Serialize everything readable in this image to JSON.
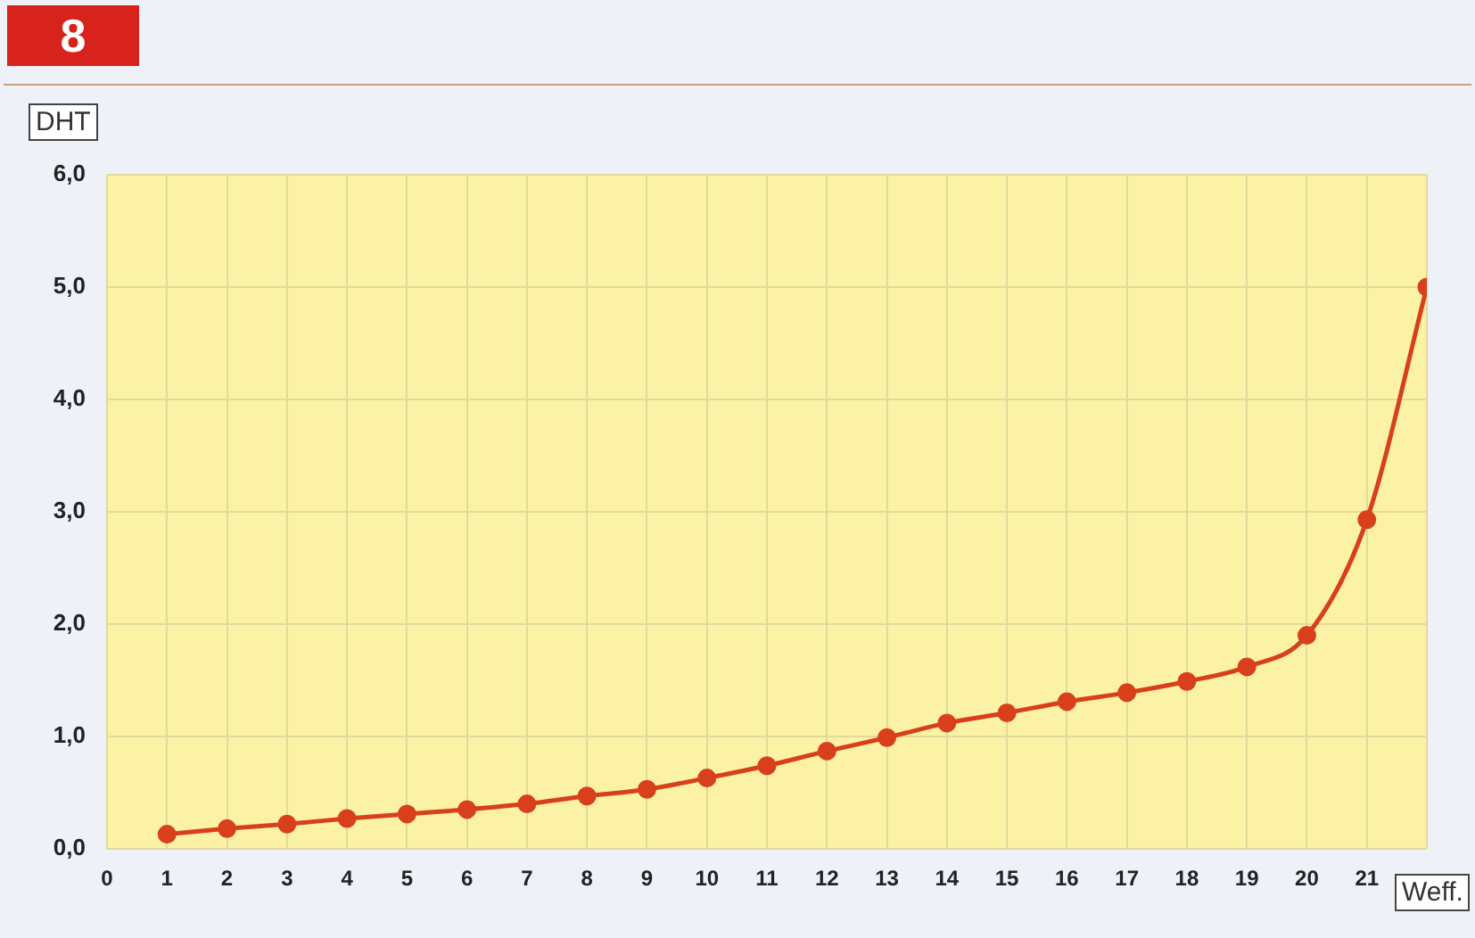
{
  "chart_data": {
    "type": "line",
    "title": "8",
    "xlabel": "Weff.",
    "ylabel": "DHT",
    "x": [
      1,
      2,
      3,
      4,
      5,
      6,
      7,
      8,
      9,
      10,
      11,
      12,
      13,
      14,
      15,
      16,
      17,
      18,
      19,
      20,
      21,
      22
    ],
    "series": [
      {
        "color": "#d8401c",
        "values": [
          0.13,
          0.18,
          0.22,
          0.27,
          0.31,
          0.35,
          0.4,
          0.47,
          0.53,
          0.63,
          0.74,
          0.87,
          0.99,
          1.12,
          1.21,
          1.31,
          1.39,
          1.49,
          1.62,
          1.9,
          2.93,
          5.0
        ]
      }
    ],
    "xlim": [
      0,
      22
    ],
    "xticks": [
      0,
      1,
      2,
      3,
      4,
      5,
      6,
      7,
      8,
      9,
      10,
      11,
      12,
      13,
      14,
      15,
      16,
      17,
      18,
      19,
      20,
      21,
      {
        "value": 22,
        "label": null
      }
    ],
    "ylim": [
      0,
      6
    ],
    "yticks": [
      {
        "value": 0,
        "label": "0,0"
      },
      {
        "value": 1,
        "label": "1,0"
      },
      {
        "value": 2,
        "label": "2,0"
      },
      {
        "value": 3,
        "label": "3,0"
      },
      {
        "value": 4,
        "label": "4,0"
      },
      {
        "value": 5,
        "label": "5,0"
      },
      {
        "value": 6,
        "label": "6,0"
      }
    ],
    "grid": true,
    "marker": "circle",
    "line_style": "solid"
  }
}
